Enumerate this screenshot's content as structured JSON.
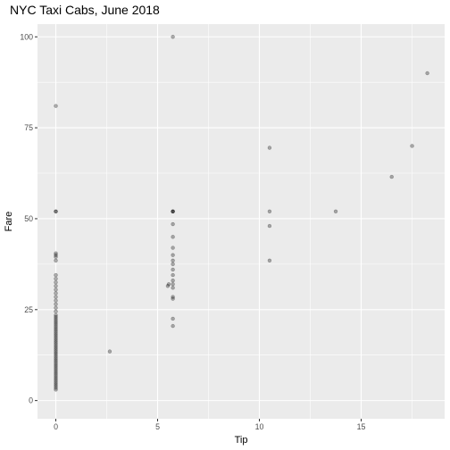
{
  "chart_data": {
    "type": "scatter",
    "title": "NYC Taxi Cabs, June 2018",
    "xlabel": "Tip",
    "ylabel": "Fare",
    "xlim": [
      -0.9,
      19.1
    ],
    "ylim": [
      -5,
      103.5
    ],
    "x_ticks": [
      0,
      5,
      10,
      15
    ],
    "y_ticks": [
      0,
      25,
      50,
      75,
      100
    ],
    "grid": true,
    "background": "#ebebeb",
    "grid_color": "#ffffff",
    "point_color": "#000000",
    "point_opacity": 0.3,
    "points": [
      {
        "x": 0,
        "y": 3.0
      },
      {
        "x": 0,
        "y": 3.5
      },
      {
        "x": 0,
        "y": 4.0
      },
      {
        "x": 0,
        "y": 4.5
      },
      {
        "x": 0,
        "y": 5.0
      },
      {
        "x": 0,
        "y": 5.5
      },
      {
        "x": 0,
        "y": 6.0
      },
      {
        "x": 0,
        "y": 6.5
      },
      {
        "x": 0,
        "y": 7.0
      },
      {
        "x": 0,
        "y": 7.5
      },
      {
        "x": 0,
        "y": 8.0
      },
      {
        "x": 0,
        "y": 8.5
      },
      {
        "x": 0,
        "y": 9.0
      },
      {
        "x": 0,
        "y": 9.5
      },
      {
        "x": 0,
        "y": 10.0
      },
      {
        "x": 0,
        "y": 10.5
      },
      {
        "x": 0,
        "y": 11.0
      },
      {
        "x": 0,
        "y": 11.5
      },
      {
        "x": 0,
        "y": 12.0
      },
      {
        "x": 0,
        "y": 12.5
      },
      {
        "x": 0,
        "y": 13.0
      },
      {
        "x": 0,
        "y": 13.5
      },
      {
        "x": 0,
        "y": 14.0
      },
      {
        "x": 0,
        "y": 14.5
      },
      {
        "x": 0,
        "y": 15.0
      },
      {
        "x": 0,
        "y": 15.5
      },
      {
        "x": 0,
        "y": 16.0
      },
      {
        "x": 0,
        "y": 16.5
      },
      {
        "x": 0,
        "y": 17.0
      },
      {
        "x": 0,
        "y": 17.5
      },
      {
        "x": 0,
        "y": 18.0
      },
      {
        "x": 0,
        "y": 18.5
      },
      {
        "x": 0,
        "y": 19.0
      },
      {
        "x": 0,
        "y": 19.5
      },
      {
        "x": 0,
        "y": 20.0
      },
      {
        "x": 0,
        "y": 20.5
      },
      {
        "x": 0,
        "y": 21.0
      },
      {
        "x": 0,
        "y": 21.5
      },
      {
        "x": 0,
        "y": 22.0
      },
      {
        "x": 0,
        "y": 22.5
      },
      {
        "x": 0,
        "y": 23.0
      },
      {
        "x": 0,
        "y": 23.5
      },
      {
        "x": 0,
        "y": 24.5
      },
      {
        "x": 0,
        "y": 25.5
      },
      {
        "x": 0,
        "y": 26.5
      },
      {
        "x": 0,
        "y": 27.5
      },
      {
        "x": 0,
        "y": 28.5
      },
      {
        "x": 0,
        "y": 29.5
      },
      {
        "x": 0,
        "y": 30.5
      },
      {
        "x": 0,
        "y": 31.5
      },
      {
        "x": 0,
        "y": 32.5
      },
      {
        "x": 0,
        "y": 33.5
      },
      {
        "x": 0,
        "y": 34.5
      },
      {
        "x": 0,
        "y": 38.5
      },
      {
        "x": 0,
        "y": 39.5
      },
      {
        "x": 0,
        "y": 40.0
      },
      {
        "x": 0,
        "y": 40.5
      },
      {
        "x": 0,
        "y": 52.0
      },
      {
        "x": 0,
        "y": 52.0
      },
      {
        "x": 0,
        "y": 81.0
      },
      {
        "x": 2.65,
        "y": 13.5
      },
      {
        "x": 5.5,
        "y": 31.5
      },
      {
        "x": 5.55,
        "y": 32.0
      },
      {
        "x": 5.75,
        "y": 100.0
      },
      {
        "x": 5.75,
        "y": 52.0
      },
      {
        "x": 5.75,
        "y": 52.0
      },
      {
        "x": 5.75,
        "y": 52.0
      },
      {
        "x": 5.75,
        "y": 48.5
      },
      {
        "x": 5.75,
        "y": 45.0
      },
      {
        "x": 5.75,
        "y": 42.0
      },
      {
        "x": 5.75,
        "y": 40.0
      },
      {
        "x": 5.75,
        "y": 38.5
      },
      {
        "x": 5.75,
        "y": 37.5
      },
      {
        "x": 5.75,
        "y": 36.0
      },
      {
        "x": 5.75,
        "y": 34.5
      },
      {
        "x": 5.75,
        "y": 33.0
      },
      {
        "x": 5.75,
        "y": 32.0
      },
      {
        "x": 5.75,
        "y": 31.0
      },
      {
        "x": 5.75,
        "y": 28.5
      },
      {
        "x": 5.75,
        "y": 28.0
      },
      {
        "x": 5.75,
        "y": 22.5
      },
      {
        "x": 5.75,
        "y": 20.5
      },
      {
        "x": 10.5,
        "y": 69.5
      },
      {
        "x": 10.5,
        "y": 52.0
      },
      {
        "x": 10.5,
        "y": 48.0
      },
      {
        "x": 10.5,
        "y": 38.5
      },
      {
        "x": 13.75,
        "y": 52.0
      },
      {
        "x": 16.5,
        "y": 61.5
      },
      {
        "x": 17.5,
        "y": 70.0
      },
      {
        "x": 18.25,
        "y": 90.0
      }
    ]
  }
}
